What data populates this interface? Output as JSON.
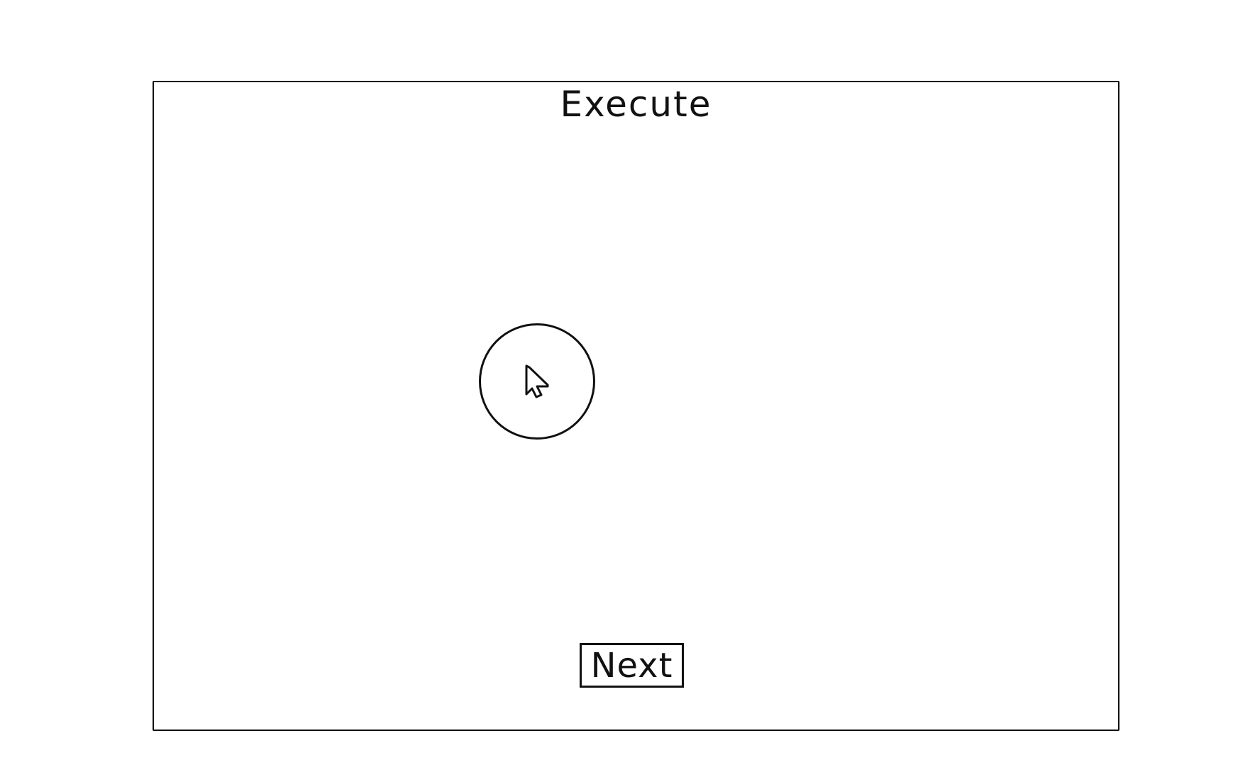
{
  "screen": {
    "title": "Execute"
  },
  "target": {
    "icon": "cursor-arrow-icon"
  },
  "footer": {
    "next_label": "Next"
  }
}
